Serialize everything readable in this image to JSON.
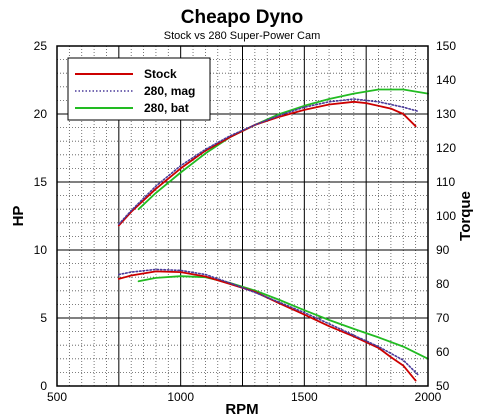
{
  "chart_data": {
    "type": "line",
    "title": "Cheapo Dyno",
    "subtitle": "Stock vs 280 Super-Power Cam",
    "xlabel": "RPM",
    "ylabel": "HP",
    "y2label": "Torque",
    "xlim": [
      500,
      2000
    ],
    "ylim": [
      0,
      25
    ],
    "y2lim": [
      50,
      150
    ],
    "xticks": [
      500,
      1000,
      1500,
      2000
    ],
    "yticks": [
      0,
      5,
      10,
      15,
      20,
      25
    ],
    "y2ticks": [
      50,
      60,
      70,
      80,
      90,
      100,
      110,
      120,
      130,
      140,
      150
    ],
    "grid": true,
    "legend_position": "top-left",
    "series": [
      {
        "name": "Stock",
        "color": "#cc0000",
        "style": "solid",
        "hp": [
          [
            750,
            11.8
          ],
          [
            800,
            12.8
          ],
          [
            900,
            14.5
          ],
          [
            1000,
            16.0
          ],
          [
            1100,
            17.3
          ],
          [
            1200,
            18.3
          ],
          [
            1300,
            19.2
          ],
          [
            1400,
            19.8
          ],
          [
            1500,
            20.3
          ],
          [
            1600,
            20.7
          ],
          [
            1700,
            20.9
          ],
          [
            1750,
            20.8
          ],
          [
            1850,
            20.4
          ],
          [
            1900,
            20.0
          ],
          [
            1950,
            19.1
          ]
        ],
        "torque": [
          [
            750,
            81.5
          ],
          [
            800,
            82.5
          ],
          [
            900,
            83.7
          ],
          [
            1000,
            83.5
          ],
          [
            1100,
            82.2
          ],
          [
            1200,
            80.0
          ],
          [
            1300,
            77.7
          ],
          [
            1400,
            74.3
          ],
          [
            1500,
            71.0
          ],
          [
            1600,
            67.6
          ],
          [
            1700,
            64.6
          ],
          [
            1800,
            61.2
          ],
          [
            1850,
            58.5
          ],
          [
            1900,
            56.0
          ],
          [
            1950,
            51.6
          ]
        ]
      },
      {
        "name": "280, mag",
        "color": "#4a3a9a",
        "style": "dotted",
        "hp": [
          [
            750,
            11.9
          ],
          [
            800,
            12.9
          ],
          [
            900,
            14.7
          ],
          [
            1000,
            16.2
          ],
          [
            1100,
            17.4
          ],
          [
            1200,
            18.4
          ],
          [
            1300,
            19.2
          ],
          [
            1400,
            19.9
          ],
          [
            1500,
            20.5
          ],
          [
            1600,
            20.9
          ],
          [
            1700,
            21.1
          ],
          [
            1800,
            20.9
          ],
          [
            1900,
            20.5
          ],
          [
            1960,
            20.2
          ]
        ],
        "torque": [
          [
            750,
            82.8
          ],
          [
            800,
            83.5
          ],
          [
            900,
            84.3
          ],
          [
            1000,
            84.0
          ],
          [
            1100,
            82.8
          ],
          [
            1200,
            80.3
          ],
          [
            1300,
            77.5
          ],
          [
            1400,
            74.6
          ],
          [
            1500,
            71.6
          ],
          [
            1600,
            68.3
          ],
          [
            1700,
            64.9
          ],
          [
            1800,
            61.6
          ],
          [
            1900,
            57.6
          ],
          [
            1960,
            53.3
          ]
        ]
      },
      {
        "name": "280, bat",
        "color": "#22bb22",
        "style": "solid",
        "hp": [
          [
            830,
            13.0
          ],
          [
            900,
            14.2
          ],
          [
            1000,
            15.7
          ],
          [
            1100,
            17.1
          ],
          [
            1200,
            18.3
          ],
          [
            1300,
            19.2
          ],
          [
            1400,
            20.0
          ],
          [
            1500,
            20.6
          ],
          [
            1600,
            21.1
          ],
          [
            1700,
            21.5
          ],
          [
            1800,
            21.8
          ],
          [
            1900,
            21.8
          ],
          [
            2000,
            21.5
          ]
        ],
        "torque": [
          [
            830,
            80.8
          ],
          [
            900,
            81.8
          ],
          [
            1000,
            82.3
          ],
          [
            1100,
            82.0
          ],
          [
            1200,
            80.3
          ],
          [
            1300,
            78.1
          ],
          [
            1400,
            75.3
          ],
          [
            1500,
            72.3
          ],
          [
            1600,
            69.4
          ],
          [
            1700,
            66.8
          ],
          [
            1800,
            64.3
          ],
          [
            1900,
            61.6
          ],
          [
            2000,
            58.0
          ]
        ]
      }
    ]
  }
}
